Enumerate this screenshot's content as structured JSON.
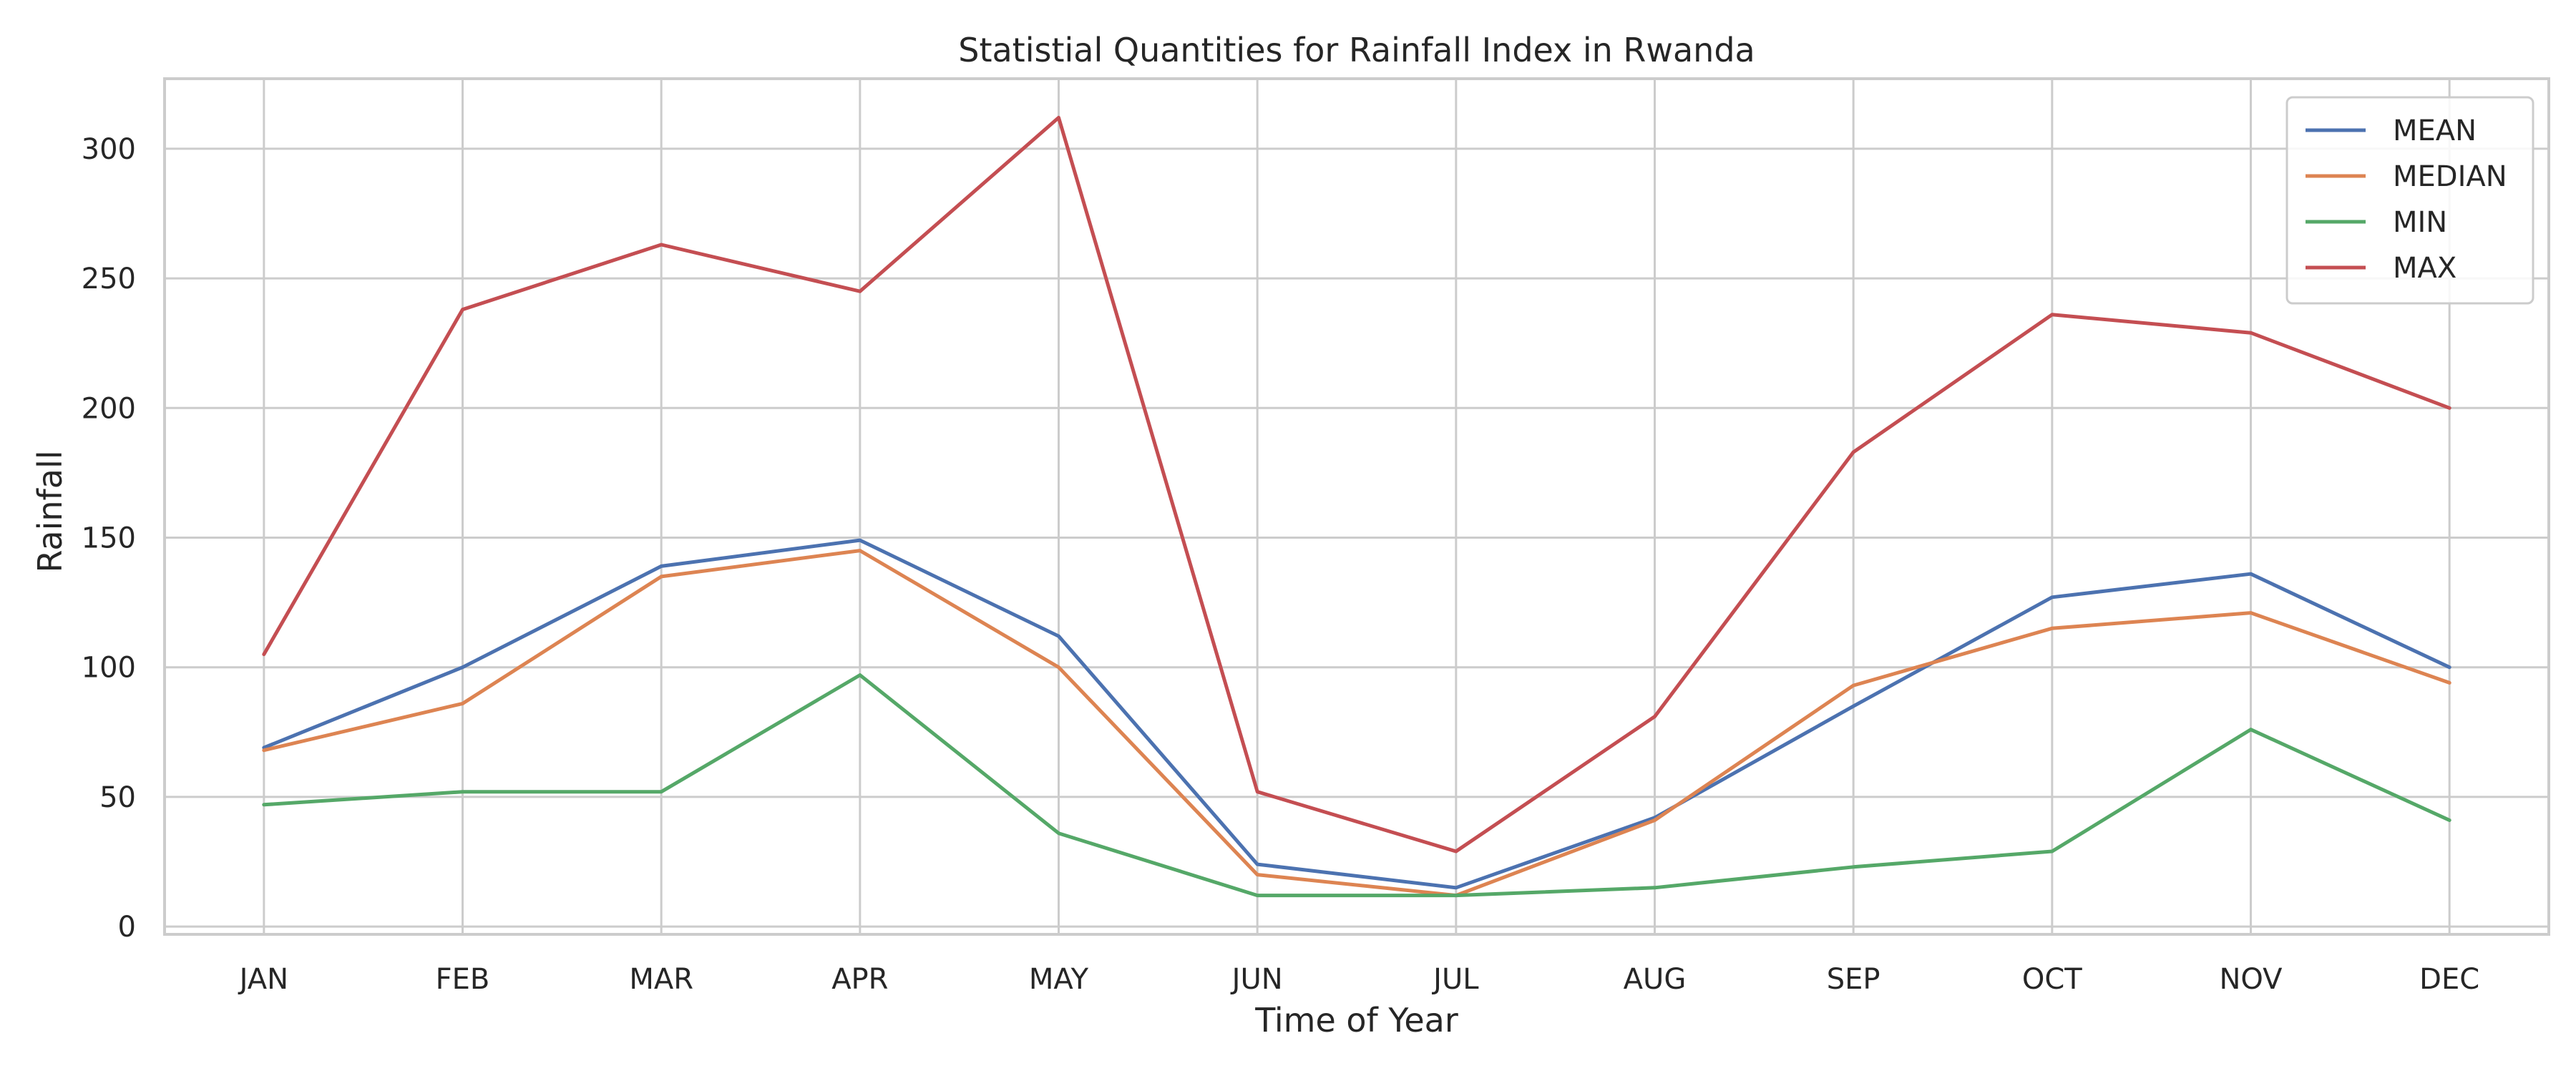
{
  "chart_data": {
    "type": "line",
    "title": "Statistial Quantities for Rainfall Index in Rwanda",
    "xlabel": "Time of Year",
    "ylabel": "Rainfall",
    "categories": [
      "JAN",
      "FEB",
      "MAR",
      "APR",
      "MAY",
      "JUN",
      "JUL",
      "AUG",
      "SEP",
      "OCT",
      "NOV",
      "DEC"
    ],
    "ylim": [
      -3,
      327
    ],
    "yticks": [
      0,
      50,
      100,
      150,
      200,
      250,
      300
    ],
    "grid": true,
    "legend_position": "top-right",
    "series": [
      {
        "name": "MEAN",
        "color": "#4c72b0",
        "values": [
          69,
          100,
          139,
          149,
          112,
          24,
          15,
          42,
          85,
          127,
          136,
          100
        ]
      },
      {
        "name": "MEDIAN",
        "color": "#dd8452",
        "values": [
          68,
          86,
          135,
          145,
          100,
          20,
          12,
          41,
          93,
          115,
          121,
          94
        ]
      },
      {
        "name": "MIN",
        "color": "#55a868",
        "values": [
          47,
          52,
          52,
          97,
          36,
          12,
          12,
          15,
          23,
          29,
          76,
          41
        ]
      },
      {
        "name": "MAX",
        "color": "#c44e52",
        "values": [
          105,
          238,
          263,
          245,
          312,
          52,
          29,
          81,
          183,
          236,
          229,
          200
        ]
      }
    ]
  }
}
